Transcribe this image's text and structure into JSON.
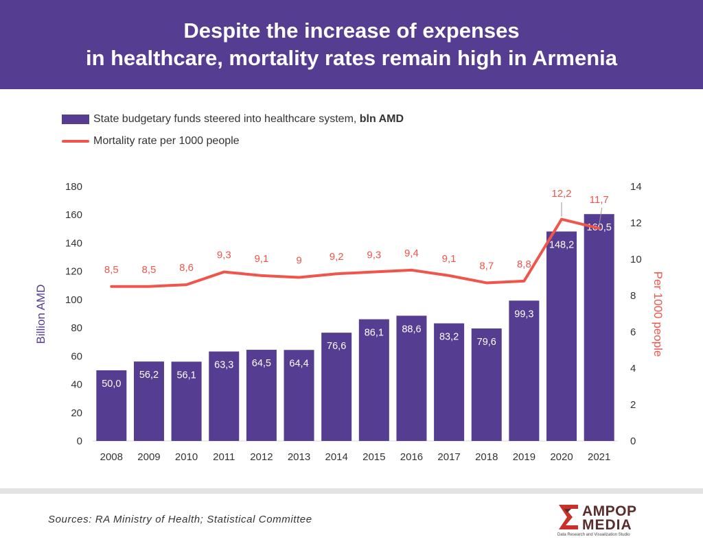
{
  "header": {
    "title": "Despite the increase of expenses\nin healthcare, mortality rates remain high in Armenia"
  },
  "legend": {
    "bar_label": "State budgetary funds steered into healthcare system, ",
    "bar_label_bold": "bln AMD",
    "line_label": "Mortality rate per 1000 people"
  },
  "colors": {
    "bar": "#553d92",
    "line": "#f0544a",
    "header": "#553d92",
    "axis_text": "#333333"
  },
  "chart_data": {
    "type": "bar",
    "categories": [
      "2008",
      "2009",
      "2010",
      "2011",
      "2012",
      "2013",
      "2014",
      "2015",
      "2016",
      "2017",
      "2018",
      "2019",
      "2020",
      "2021"
    ],
    "series": [
      {
        "name": "State budgetary funds steered into healthcare system, bln AMD",
        "type": "bar",
        "axis": "left",
        "values": [
          50.0,
          56.2,
          56.1,
          63.3,
          64.5,
          64.4,
          76.6,
          86.1,
          88.6,
          83.2,
          79.6,
          99.3,
          148.2,
          160.5
        ],
        "labels": [
          "50,0",
          "56,2",
          "56,1",
          "63,3",
          "64,5",
          "64,4",
          "76,6",
          "86,1",
          "88,6",
          "83,2",
          "79,6",
          "99,3",
          "148,2",
          "160,5"
        ]
      },
      {
        "name": "Mortality rate per 1000 people",
        "type": "line",
        "axis": "right",
        "values": [
          8.5,
          8.5,
          8.6,
          9.3,
          9.1,
          9.0,
          9.2,
          9.3,
          9.4,
          9.1,
          8.7,
          8.8,
          12.2,
          11.7
        ],
        "labels": [
          "8,5",
          "8,5",
          "8,6",
          "9,3",
          "9,1",
          "9",
          "9,2",
          "9,3",
          "9,4",
          "9,1",
          "8,7",
          "8,8",
          "12,2",
          "11,7"
        ]
      }
    ],
    "ylabel": "Billion AMD",
    "ylim": [
      0,
      180
    ],
    "yticks": [
      "0",
      "20",
      "40",
      "60",
      "80",
      "100",
      "120",
      "140",
      "160",
      "180"
    ],
    "y2label": "Per 1000 people",
    "y2lim": [
      0,
      14
    ],
    "y2ticks": [
      "0",
      "2",
      "4",
      "6",
      "8",
      "10",
      "12",
      "14"
    ],
    "grid": false,
    "legend_position": "top-left"
  },
  "footer": {
    "source": "Sources: RA Ministry of Health; Statistical Committee",
    "logo_line1": "AMPOP",
    "logo_line2": "MEDIA",
    "logo_tagline": "Data Research and Visualization Studio"
  }
}
